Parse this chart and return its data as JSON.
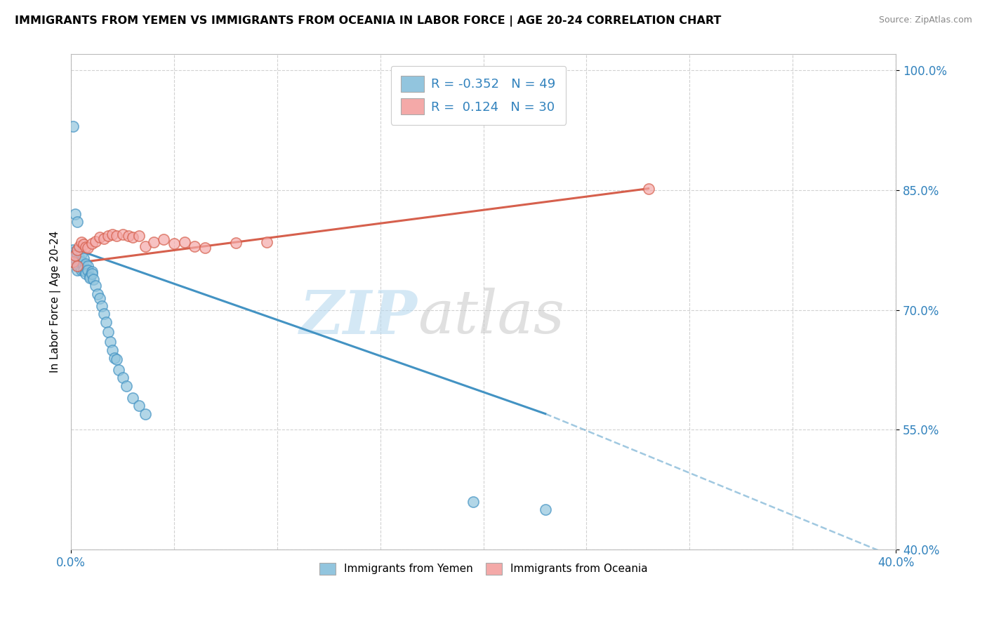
{
  "title": "IMMIGRANTS FROM YEMEN VS IMMIGRANTS FROM OCEANIA IN LABOR FORCE | AGE 20-24 CORRELATION CHART",
  "source": "Source: ZipAtlas.com",
  "ylabel": "In Labor Force | Age 20-24",
  "xlim": [
    0.0,
    0.4
  ],
  "ylim": [
    0.4,
    1.02
  ],
  "yticks": [
    0.4,
    0.55,
    0.7,
    0.85,
    1.0
  ],
  "ytick_labels": [
    "40.0%",
    "55.0%",
    "70.0%",
    "85.0%",
    "100.0%"
  ],
  "xticks": [
    0.0,
    0.4
  ],
  "xtick_labels": [
    "0.0%",
    "40.0%"
  ],
  "R_yemen": -0.352,
  "N_yemen": 49,
  "R_oceania": 0.124,
  "N_oceania": 30,
  "color_yemen": "#92c5de",
  "color_oceania": "#f4a9a8",
  "color_trend_yemen": "#4393c3",
  "color_trend_oceania": "#d6604d",
  "watermark_zip": "ZIP",
  "watermark_atlas": "atlas",
  "yemen_x": [
    0.001,
    0.002,
    0.003,
    0.001,
    0.002,
    0.003,
    0.004,
    0.003,
    0.004,
    0.005,
    0.003,
    0.004,
    0.005,
    0.006,
    0.005,
    0.006,
    0.007,
    0.006,
    0.007,
    0.008,
    0.007,
    0.008,
    0.009,
    0.01,
    0.009,
    0.01,
    0.011,
    0.012,
    0.013,
    0.014,
    0.015,
    0.016,
    0.017,
    0.018,
    0.019,
    0.02,
    0.021,
    0.022,
    0.023,
    0.025,
    0.027,
    0.03,
    0.033,
    0.036,
    0.002,
    0.003,
    0.001,
    0.195,
    0.23
  ],
  "yemen_y": [
    0.775,
    0.77,
    0.775,
    0.76,
    0.765,
    0.77,
    0.765,
    0.755,
    0.76,
    0.77,
    0.75,
    0.755,
    0.76,
    0.765,
    0.75,
    0.755,
    0.758,
    0.75,
    0.748,
    0.755,
    0.745,
    0.75,
    0.742,
    0.748,
    0.74,
    0.745,
    0.738,
    0.73,
    0.72,
    0.715,
    0.705,
    0.695,
    0.685,
    0.672,
    0.66,
    0.65,
    0.64,
    0.638,
    0.625,
    0.615,
    0.605,
    0.59,
    0.58,
    0.57,
    0.82,
    0.81,
    0.93,
    0.46,
    0.45
  ],
  "oceania_x": [
    0.001,
    0.002,
    0.003,
    0.004,
    0.005,
    0.006,
    0.007,
    0.008,
    0.01,
    0.012,
    0.014,
    0.016,
    0.018,
    0.02,
    0.022,
    0.025,
    0.028,
    0.03,
    0.033,
    0.036,
    0.04,
    0.045,
    0.05,
    0.055,
    0.06,
    0.065,
    0.08,
    0.095,
    0.003,
    0.28
  ],
  "oceania_y": [
    0.76,
    0.768,
    0.775,
    0.78,
    0.785,
    0.782,
    0.779,
    0.778,
    0.783,
    0.786,
    0.791,
    0.789,
    0.793,
    0.795,
    0.793,
    0.795,
    0.793,
    0.791,
    0.793,
    0.78,
    0.785,
    0.788,
    0.783,
    0.785,
    0.78,
    0.778,
    0.784,
    0.785,
    0.755,
    0.852
  ],
  "trend_yemen_x0": 0.0,
  "trend_yemen_x1": 0.23,
  "trend_yemen_y0": 0.778,
  "trend_yemen_y1": 0.57,
  "trend_yemen_dash_x1": 0.4,
  "trend_yemen_dash_y1": 0.39,
  "trend_oceania_x0": 0.0,
  "trend_oceania_x1": 0.28,
  "trend_oceania_y0": 0.758,
  "trend_oceania_y1": 0.852
}
